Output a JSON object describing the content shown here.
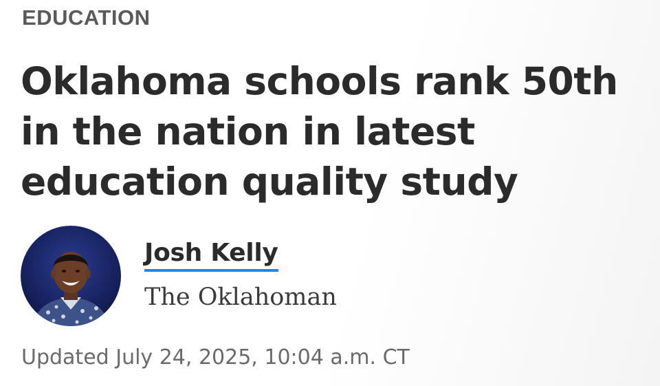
{
  "article": {
    "section": "EDUCATION",
    "headline": "Oklahoma schools rank 50th in the nation in latest education quality study",
    "author": {
      "name": "Josh Kelly",
      "publication": "The Oklahoman",
      "avatar_icon": "author-photo"
    },
    "updated": "Updated July 24, 2025, 10:04 a.m. CT"
  },
  "colors": {
    "headline_text": "#2b2b2b",
    "section_text": "#5a5a5a",
    "author_underline": "#1e88e5",
    "meta_text": "#6a6a6a"
  }
}
